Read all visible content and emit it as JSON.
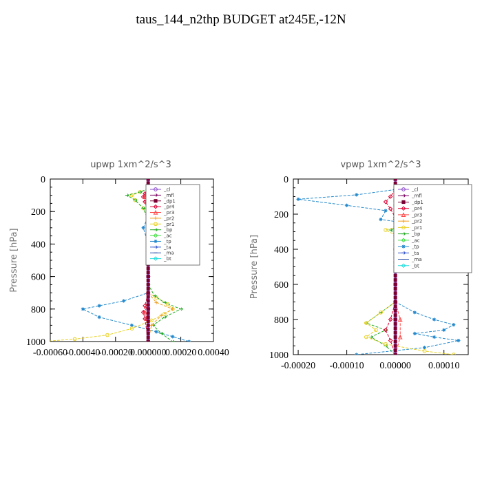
{
  "figure": {
    "title": "taus_144_n2thp  BUDGET at245E,-12N"
  },
  "legend_entries": [
    {
      "name": "_cl",
      "color": "#8844cc",
      "marker": "circle"
    },
    {
      "name": "_mfl",
      "color": "#7a0060",
      "marker": "arrow"
    },
    {
      "name": "_dp1",
      "color": "#7a0033",
      "marker": "square"
    },
    {
      "name": "_pr4",
      "color": "#dd0033",
      "marker": "diamond"
    },
    {
      "name": "_pr3",
      "color": "#ff4444",
      "marker": "tri"
    },
    {
      "name": "_pr2",
      "color": "#f0a020",
      "marker": "plus"
    },
    {
      "name": "_pr1",
      "color": "#e8d020",
      "marker": "circle"
    },
    {
      "name": "_bp",
      "color": "#22aa22",
      "marker": "arrow"
    },
    {
      "name": "_ac",
      "color": "#44dd44",
      "marker": "diamond"
    },
    {
      "name": "_tp",
      "color": "#2288cc",
      "marker": "star"
    },
    {
      "name": "_ta",
      "color": "#3355cc",
      "marker": "arrow"
    },
    {
      "name": "_ma",
      "color": "#3355aa",
      "marker": "dash"
    },
    {
      "name": "_bt",
      "color": "#22dddd",
      "marker": "diamond"
    }
  ],
  "chart_data": [
    {
      "type": "line",
      "title": "upwp   1xm^2/s^3",
      "ylabel": "Pressure [hPa]",
      "xlabel": "",
      "xlim": [
        -0.0006,
        0.0004
      ],
      "ylim": [
        1000,
        0
      ],
      "xticks": [
        -0.0006,
        -0.0004,
        -0.0002,
        0.0,
        0.0002,
        0.0004
      ],
      "xtick_labels": [
        "-0.00060",
        "-0.00040",
        "-0.00020",
        "0.000000",
        "0.00020",
        "0.00040"
      ],
      "yticks": [
        0,
        200,
        400,
        600,
        800,
        1000
      ],
      "ytick_labels": [
        "0",
        "200",
        "400",
        "600",
        "800",
        "1000"
      ],
      "legend_position": "upper-right",
      "series": [
        {
          "name": "_tp",
          "x": [
            0,
            5e-05,
            0.0002,
            5e-05,
            3e-05,
            0,
            -3e-05,
            0,
            0,
            0,
            0,
            -0.00015,
            -0.0003,
            -0.0004,
            -0.0003,
            -0.0001,
            5e-05,
            0.00015,
            0.00025
          ],
          "y": [
            50,
            70,
            100,
            130,
            180,
            230,
            300,
            400,
            500,
            600,
            700,
            750,
            780,
            800,
            850,
            900,
            940,
            970,
            1000
          ]
        },
        {
          "name": "_pr1",
          "x": [
            0,
            -5e-05,
            -0.0001,
            -8e-05,
            -3e-05,
            0,
            0,
            0,
            0,
            5e-05,
            0.00012,
            0.00015,
            0.0001,
            2e-05,
            -0.0001,
            -0.00025,
            -0.00045,
            -0.00065
          ],
          "y": [
            60,
            80,
            100,
            130,
            180,
            250,
            400,
            600,
            700,
            730,
            770,
            800,
            830,
            870,
            920,
            960,
            985,
            1000
          ]
        },
        {
          "name": "_bp",
          "x": [
            0,
            -5e-05,
            -0.00013,
            -8e-05,
            -3e-05,
            0,
            0,
            0,
            4e-05,
            0.0001,
            0.0002,
            0.0001,
            3e-05,
            8e-05,
            0.00015
          ],
          "y": [
            60,
            80,
            100,
            130,
            180,
            250,
            400,
            650,
            720,
            760,
            800,
            850,
            900,
            950,
            1000
          ]
        },
        {
          "name": "_pr2",
          "x": [
            0,
            4e-05,
            8e-05,
            5e-05,
            2e-05,
            0,
            0,
            0,
            5e-05,
            0.00015,
            8e-05,
            2e-05,
            0
          ],
          "y": [
            60,
            80,
            100,
            130,
            200,
            300,
            500,
            700,
            760,
            800,
            840,
            900,
            1000
          ]
        },
        {
          "name": "_pr4",
          "x": [
            0,
            -2e-05,
            -3e-05,
            -2e-05,
            0,
            0,
            -2e-05,
            -3e-05,
            -2e-05,
            0
          ],
          "y": [
            60,
            90,
            110,
            140,
            200,
            700,
            780,
            820,
            860,
            1000
          ]
        },
        {
          "name": "_pr3",
          "x": [
            0,
            -1e-05,
            -2e-05,
            -1e-05,
            0,
            0,
            -1e-05,
            -2e-05,
            -1e-05,
            0
          ],
          "y": [
            60,
            90,
            110,
            140,
            200,
            700,
            780,
            820,
            860,
            1000
          ]
        },
        {
          "name": "_dp1",
          "x": [
            0,
            0,
            0,
            0,
            0,
            0
          ],
          "y": [
            0,
            200,
            400,
            600,
            800,
            1000
          ]
        },
        {
          "name": "_mfl",
          "x": [
            0,
            0,
            0,
            0,
            0,
            0
          ],
          "y": [
            0,
            200,
            400,
            600,
            800,
            1000
          ]
        },
        {
          "name": "_cl",
          "x": [
            0,
            0,
            0,
            0,
            0,
            0
          ],
          "y": [
            0,
            200,
            400,
            600,
            800,
            1000
          ]
        }
      ]
    },
    {
      "type": "line",
      "title": "vpwp   1xm^2/s^3",
      "ylabel": "Pressure [hPa]",
      "xlabel": "",
      "xlim": [
        -0.00021,
        0.00015
      ],
      "ylim": [
        1000,
        0
      ],
      "xticks": [
        -0.0002,
        -0.0001,
        0.0,
        0.0001
      ],
      "xtick_labels": [
        "-0.00020",
        "-0.00010",
        "0.00000",
        "0.00010"
      ],
      "yticks": [
        0,
        200,
        400,
        600,
        800,
        1000
      ],
      "ytick_labels": [
        "0",
        "200",
        "400",
        "600",
        "800",
        "1000"
      ],
      "legend_position": "upper-right",
      "series": [
        {
          "name": "_tp",
          "x": [
            0,
            -8e-05,
            -0.0002,
            -0.0001,
            -2e-05,
            -3e-05,
            2e-05,
            4e-05,
            1e-05,
            0,
            0,
            4e-05,
            8e-05,
            0.00012,
            0.0001,
            4e-05,
            8e-05,
            0.00013,
            6e-05,
            -8e-05
          ],
          "y": [
            60,
            90,
            115,
            150,
            180,
            230,
            250,
            290,
            330,
            400,
            700,
            760,
            800,
            830,
            860,
            880,
            900,
            920,
            960,
            1000
          ]
        },
        {
          "name": "_bp",
          "x": [
            0,
            5e-05,
            9e-05,
            6e-05,
            3e-05,
            5e-05,
            2e-05,
            -1e-05,
            0,
            0,
            -3e-05,
            -6e-05,
            -2e-05,
            -5e-05,
            -2e-05,
            0
          ],
          "y": [
            60,
            90,
            115,
            150,
            180,
            220,
            260,
            290,
            320,
            700,
            760,
            820,
            860,
            900,
            950,
            1000
          ]
        },
        {
          "name": "_pr1",
          "x": [
            0,
            4e-05,
            7e-05,
            4e-05,
            2e-05,
            4e-05,
            2e-05,
            -2e-05,
            0,
            0,
            -3e-05,
            -6e-05,
            -4e-05,
            -6e-05,
            -2e-05,
            6e-05,
            0.00012
          ],
          "y": [
            60,
            90,
            115,
            150,
            180,
            220,
            260,
            290,
            320,
            700,
            760,
            820,
            860,
            900,
            940,
            980,
            1000
          ]
        },
        {
          "name": "_pr4",
          "x": [
            0,
            -1e-05,
            -2e-05,
            -1e-05,
            0,
            0,
            -1e-05,
            -2e-05,
            -1e-05,
            0
          ],
          "y": [
            60,
            100,
            130,
            170,
            220,
            700,
            800,
            860,
            920,
            1000
          ]
        },
        {
          "name": "_pr3",
          "x": [
            0,
            1e-05,
            2e-05,
            1e-05,
            0,
            0,
            1e-05,
            1e-05,
            0
          ],
          "y": [
            60,
            100,
            130,
            170,
            220,
            700,
            800,
            900,
            1000
          ]
        },
        {
          "name": "_dp1",
          "x": [
            0,
            0,
            0,
            0,
            0,
            0
          ],
          "y": [
            0,
            200,
            400,
            600,
            800,
            1000
          ]
        },
        {
          "name": "_mfl",
          "x": [
            0,
            0,
            0,
            0,
            0,
            0
          ],
          "y": [
            0,
            200,
            400,
            600,
            800,
            1000
          ]
        },
        {
          "name": "_cl",
          "x": [
            0,
            0,
            0,
            0,
            0,
            0
          ],
          "y": [
            0,
            200,
            400,
            600,
            800,
            1000
          ]
        }
      ]
    }
  ]
}
